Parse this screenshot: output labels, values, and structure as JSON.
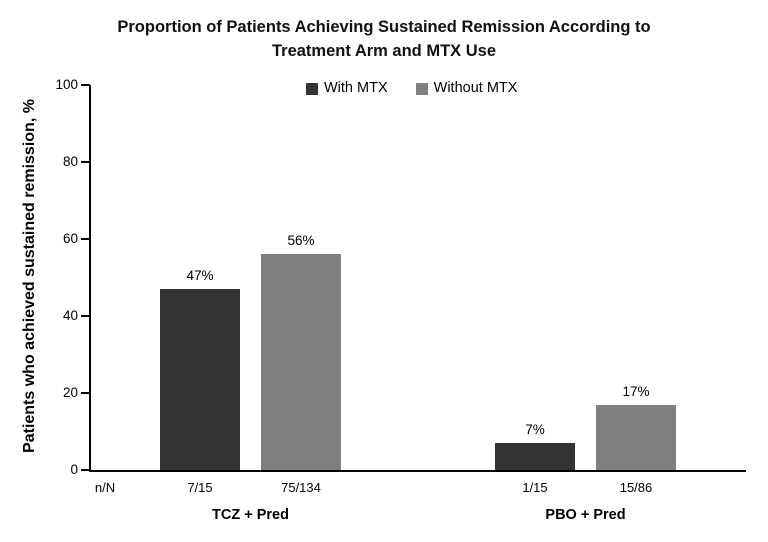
{
  "title": {
    "line1": "Proportion of Patients Achieving Sustained Remission According to",
    "line2": "Treatment Arm and MTX Use"
  },
  "chart_data": {
    "type": "bar",
    "title": "Proportion of Patients Achieving Sustained Remission According to Treatment Arm and MTX Use",
    "xlabel": "",
    "ylabel": "Patients who achieved sustained remission, %",
    "ylim": [
      0,
      100
    ],
    "y_ticks": [
      0,
      20,
      40,
      60,
      80,
      100
    ],
    "grid": false,
    "legend_position": "top-center",
    "n_header": "n/N",
    "categories": [
      "TCZ + Pred",
      "PBO + Pred"
    ],
    "series": [
      {
        "name": "With MTX",
        "color": "#333333",
        "values": [
          47,
          7
        ],
        "value_labels": [
          "47%",
          "7%"
        ],
        "n_over_N": [
          "7/15",
          "1/15"
        ]
      },
      {
        "name": "Without MTX",
        "color": "#7f7f7f",
        "values": [
          56,
          17
        ],
        "value_labels": [
          "56%",
          "17%"
        ],
        "n_over_N": [
          "75/134",
          "15/86"
        ]
      }
    ]
  }
}
